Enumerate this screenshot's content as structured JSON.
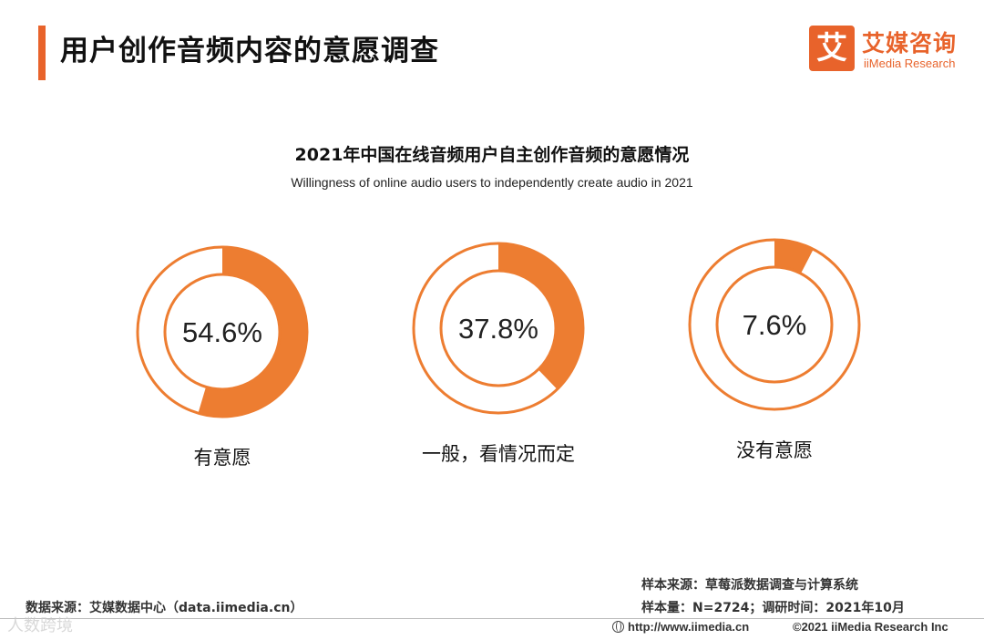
{
  "page": {
    "title": "用户创作音频内容的意愿调查"
  },
  "brand": {
    "logo_char": "艾",
    "name_cn": "艾媒咨询",
    "name_en": "iiMedia Research"
  },
  "chart_data": {
    "type": "pie",
    "title": "2021年中国在线音频用户自主创作音频的意愿情况",
    "subtitle": "Willingness of online audio users to independently create audio in 2021",
    "unit": "%",
    "categories": [
      "有意愿",
      "一般，看情况而定",
      "没有意愿"
    ],
    "values": [
      54.6,
      37.8,
      7.6
    ],
    "value_labels": [
      "54.6%",
      "37.8%",
      "7.6%"
    ],
    "color": "#ed7d31"
  },
  "notes": {
    "data_source": "数据来源：艾媒数据中心（data.iimedia.cn）",
    "sample_source": "样本来源：草莓派数据调查与计算系统",
    "sample_size": "样本量：N=2724；调研时间：2021年10月"
  },
  "footer": {
    "url": "http://www.iimedia.cn",
    "copyright": "©2021  iiMedia Research  Inc"
  },
  "watermark": "人数跨境"
}
